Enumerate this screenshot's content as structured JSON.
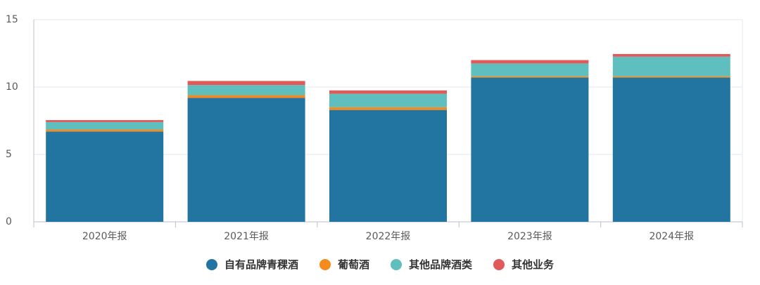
{
  "chart_data": {
    "type": "bar",
    "stacked": true,
    "categories": [
      "2020年报",
      "2021年报",
      "2022年报",
      "2023年报",
      "2024年报"
    ],
    "series": [
      {
        "name": "自有品牌青稞酒",
        "color": "#2275a0",
        "values": [
          6.7,
          9.2,
          8.3,
          10.7,
          10.7
        ]
      },
      {
        "name": "葡萄酒",
        "color": "#f58b1f",
        "values": [
          0.15,
          0.2,
          0.2,
          0.1,
          0.1
        ]
      },
      {
        "name": "其他品牌酒类",
        "color": "#5fbfbf",
        "values": [
          0.55,
          0.75,
          1.0,
          0.95,
          1.45
        ]
      },
      {
        "name": "其他业务",
        "color": "#e05a5a",
        "values": [
          0.15,
          0.3,
          0.25,
          0.25,
          0.2
        ]
      }
    ],
    "yticks": [
      0,
      5,
      10,
      15
    ],
    "ylim": [
      0,
      15
    ],
    "grid": true,
    "legend_position": "bottom"
  }
}
